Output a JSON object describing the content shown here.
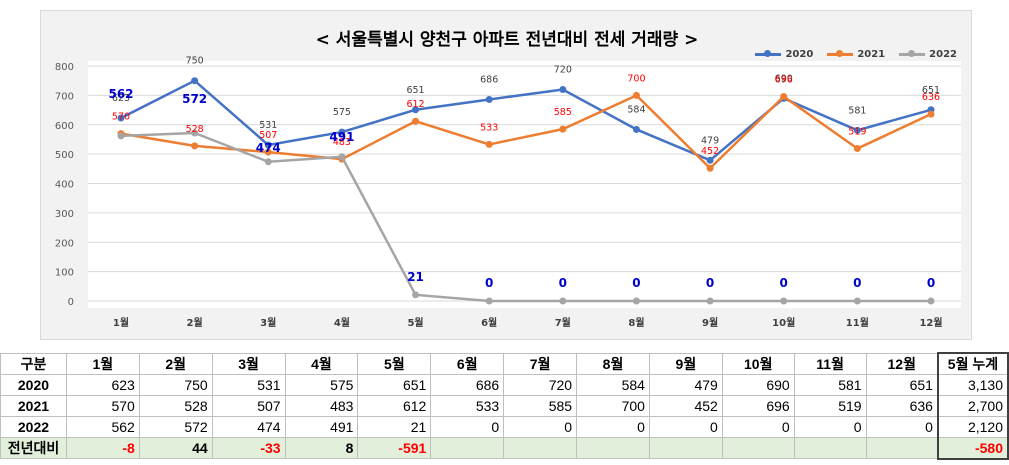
{
  "chart_data": {
    "type": "line",
    "title": "< 서울특별시 양천구  아파트 전년대비 전세 거래량 >",
    "categories": [
      "1월",
      "2월",
      "3월",
      "4월",
      "5월",
      "6월",
      "7월",
      "8월",
      "9월",
      "10월",
      "11월",
      "12월"
    ],
    "ylim": [
      0,
      800
    ],
    "yticks": [
      "0",
      "100",
      "200",
      "300",
      "400",
      "500",
      "600",
      "700",
      "800"
    ],
    "grid": true,
    "legend_position": "top-right",
    "series": [
      {
        "name": "2020",
        "color": "#4472c4",
        "label_color": "#404040",
        "values": [
          623,
          750,
          531,
          575,
          651,
          686,
          720,
          584,
          479,
          690,
          581,
          651
        ]
      },
      {
        "name": "2021",
        "color": "#ed7d31",
        "label_color": "#ff0000",
        "values": [
          570,
          528,
          507,
          483,
          612,
          533,
          585,
          700,
          452,
          696,
          519,
          636
        ]
      },
      {
        "name": "2022",
        "color": "#a5a5a5",
        "label_color": "#0000cc",
        "values": [
          562,
          572,
          474,
          491,
          21,
          0,
          0,
          0,
          0,
          0,
          0,
          0
        ]
      }
    ]
  },
  "table": {
    "headers": [
      "구분",
      "1월",
      "2월",
      "3월",
      "4월",
      "5월",
      "6월",
      "7월",
      "8월",
      "9월",
      "10월",
      "11월",
      "12월",
      "5월 누계"
    ],
    "rows": [
      {
        "label": "2020",
        "cells": [
          "623",
          "750",
          "531",
          "575",
          "651",
          "686",
          "720",
          "584",
          "479",
          "690",
          "581",
          "651",
          "3,130"
        ]
      },
      {
        "label": "2021",
        "cells": [
          "570",
          "528",
          "507",
          "483",
          "612",
          "533",
          "585",
          "700",
          "452",
          "696",
          "519",
          "636",
          "2,700"
        ]
      },
      {
        "label": "2022",
        "cells": [
          "562",
          "572",
          "474",
          "491",
          "21",
          "0",
          "0",
          "0",
          "0",
          "0",
          "0",
          "0",
          "2,120"
        ]
      }
    ],
    "diff_row": {
      "label": "전년대비",
      "cells": [
        "-8",
        "44",
        "-33",
        "8",
        "-591",
        "",
        "",
        "",
        "",
        "",
        "",
        "",
        "-580"
      ]
    }
  },
  "colors": {
    "neg": "#ff0000",
    "pos": "#000000"
  }
}
